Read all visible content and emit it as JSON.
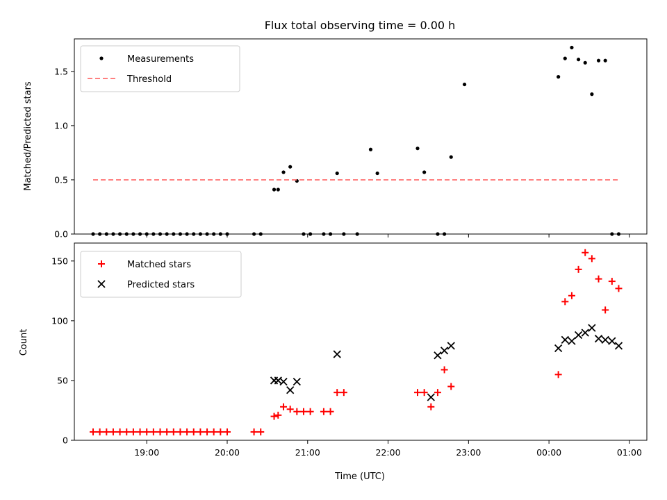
{
  "chart_data": {
    "title": "Flux total observing time = 0.00 h",
    "xlabel": "Time (UTC)",
    "x_ticks": [
      "19:00",
      "20:00",
      "21:00",
      "22:00",
      "23:00",
      "00:00",
      "01:00"
    ],
    "panels": [
      {
        "type": "scatter",
        "ylabel": "Matched/Predicted stars",
        "ylim": [
          0,
          1.8
        ],
        "y_ticks": [
          "0.0",
          "0.5",
          "1.0",
          "1.5"
        ],
        "legend_position": "top-left",
        "series": [
          {
            "name": "Measurements",
            "marker": "dot",
            "color": "#000000",
            "x": [
              "18:20",
              "18:25",
              "18:30",
              "18:35",
              "18:40",
              "18:45",
              "18:50",
              "18:55",
              "19:00",
              "19:05",
              "19:10",
              "19:15",
              "19:20",
              "19:25",
              "19:30",
              "19:35",
              "19:40",
              "19:45",
              "19:50",
              "19:55",
              "20:00",
              "20:20",
              "20:25",
              "20:35",
              "20:38",
              "20:42",
              "20:47",
              "20:52",
              "20:57",
              "21:02",
              "21:12",
              "21:17",
              "21:22",
              "21:27",
              "21:37",
              "21:47",
              "21:52",
              "22:22",
              "22:27",
              "22:37",
              "22:42",
              "22:47",
              "22:57",
              "00:07",
              "00:12",
              "00:17",
              "00:22",
              "00:27",
              "00:32",
              "00:37",
              "00:42",
              "00:47",
              "00:52"
            ],
            "y": [
              0,
              0,
              0,
              0,
              0,
              0,
              0,
              0,
              0,
              0,
              0,
              0,
              0,
              0,
              0,
              0,
              0,
              0,
              0,
              0,
              0,
              0,
              0,
              0.41,
              0.41,
              0.57,
              0.62,
              0.49,
              0,
              0,
              0,
              0,
              0.56,
              0,
              0,
              0.78,
              0.56,
              0.79,
              0.57,
              0,
              0,
              0.71,
              1.38,
              1.45,
              1.62,
              1.72,
              1.61,
              1.58,
              1.29,
              1.6,
              1.6,
              0,
              0
            ]
          },
          {
            "name": "Threshold",
            "marker": "dashed-line",
            "color": "#ff8080",
            "x": [
              "18:20",
              "00:52"
            ],
            "y": [
              0.5,
              0.5
            ]
          }
        ]
      },
      {
        "type": "scatter",
        "ylabel": "Count",
        "ylim": [
          0,
          165
        ],
        "y_ticks": [
          "0",
          "50",
          "100",
          "150"
        ],
        "legend_position": "top-left",
        "series": [
          {
            "name": "Matched stars",
            "marker": "plus",
            "color": "#ff0000",
            "x": [
              "18:20",
              "18:25",
              "18:30",
              "18:35",
              "18:40",
              "18:45",
              "18:50",
              "18:55",
              "19:00",
              "19:05",
              "19:10",
              "19:15",
              "19:20",
              "19:25",
              "19:30",
              "19:35",
              "19:40",
              "19:45",
              "19:50",
              "19:55",
              "20:00",
              "20:20",
              "20:25",
              "20:35",
              "20:38",
              "20:42",
              "20:47",
              "20:52",
              "20:57",
              "21:02",
              "21:12",
              "21:17",
              "21:22",
              "21:27",
              "22:22",
              "22:27",
              "22:32",
              "22:37",
              "22:42",
              "22:47",
              "00:07",
              "00:12",
              "00:17",
              "00:22",
              "00:27",
              "00:32",
              "00:37",
              "00:42",
              "00:47",
              "00:52"
            ],
            "y": [
              7,
              7,
              7,
              7,
              7,
              7,
              7,
              7,
              7,
              7,
              7,
              7,
              7,
              7,
              7,
              7,
              7,
              7,
              7,
              7,
              7,
              7,
              7,
              20,
              21,
              28,
              26,
              24,
              24,
              24,
              24,
              24,
              40,
              40,
              40,
              40,
              28,
              40,
              59,
              45,
              55,
              116,
              121,
              143,
              157,
              152,
              135,
              109,
              133,
              127
            ]
          },
          {
            "name": "Predicted stars",
            "marker": "x",
            "color": "#000000",
            "x": [
              "20:35",
              "20:38",
              "20:42",
              "20:47",
              "20:52",
              "21:22",
              "22:32",
              "22:37",
              "22:42",
              "22:47",
              "00:07",
              "00:12",
              "00:17",
              "00:22",
              "00:27",
              "00:32",
              "00:37",
              "00:42",
              "00:47",
              "00:52"
            ],
            "y": [
              50,
              50,
              49,
              42,
              49,
              72,
              36,
              71,
              75,
              79,
              77,
              84,
              83,
              88,
              90,
              94,
              85,
              84,
              83,
              79
            ]
          }
        ]
      }
    ]
  }
}
